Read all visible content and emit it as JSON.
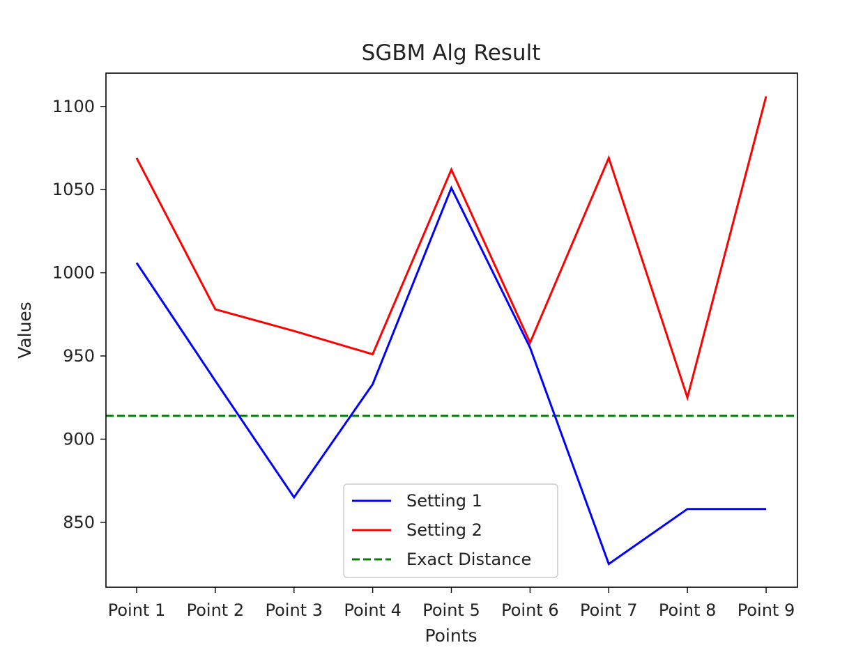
{
  "chart_data": {
    "type": "line",
    "title": "SGBM Alg Result",
    "xlabel": "Points",
    "ylabel": "Values",
    "categories": [
      "Point 1",
      "Point 2",
      "Point 3",
      "Point 4",
      "Point 5",
      "Point 6",
      "Point 7",
      "Point 8",
      "Point 9"
    ],
    "ylim": [
      811,
      1120
    ],
    "yticks": [
      850,
      900,
      950,
      1000,
      1050,
      1100
    ],
    "series": [
      {
        "name": "Setting 1",
        "color": "#0000ff",
        "dash": "solid",
        "values": [
          1006,
          935,
          865,
          933,
          1051,
          955,
          825,
          858,
          858
        ]
      },
      {
        "name": "Setting 2",
        "color": "#ff0000",
        "dash": "solid",
        "values": [
          1069,
          978,
          965,
          951,
          1062,
          958,
          1069,
          925,
          1106
        ]
      }
    ],
    "reference_line": {
      "name": "Exact Distance",
      "color": "#008000",
      "dash": "dashed",
      "value": 914
    },
    "legend": {
      "position": "lower center"
    },
    "grid": false
  }
}
